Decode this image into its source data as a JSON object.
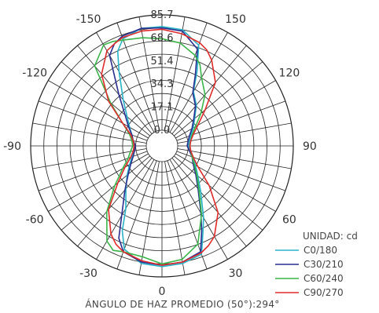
{
  "chart_data": {
    "type": "polar-line",
    "title": "",
    "unit_label": "UNIDAD: cd",
    "caption": "ÁNGULO DE HAZ PROMEDIO (50°):294°",
    "radial_ticks": [
      "0.0",
      "17.1",
      "34.3",
      "51.4",
      "68.6",
      "85.7"
    ],
    "r_max": 85.7,
    "angle_ticks": [
      {
        "angle": 0,
        "label": "0"
      },
      {
        "angle": 30,
        "label": "30"
      },
      {
        "angle": 60,
        "label": "60"
      },
      {
        "angle": 90,
        "label": "90"
      },
      {
        "angle": 120,
        "label": "120"
      },
      {
        "angle": 150,
        "label": "150"
      },
      {
        "angle": -150,
        "label": "-150"
      },
      {
        "angle": -120,
        "label": "-120"
      },
      {
        "angle": -90,
        "label": "-90"
      },
      {
        "angle": -60,
        "label": "-60"
      },
      {
        "angle": -30,
        "label": "-30"
      }
    ],
    "series": [
      {
        "name": "C0/180",
        "color": "#29b3c9",
        "points": [
          [
            0,
            78
          ],
          [
            10,
            77
          ],
          [
            20,
            74
          ],
          [
            25,
            60
          ],
          [
            30,
            50
          ],
          [
            40,
            33
          ],
          [
            50,
            23
          ],
          [
            60,
            17
          ],
          [
            70,
            13
          ],
          [
            80,
            10
          ],
          [
            90,
            8
          ],
          [
            100,
            9
          ],
          [
            110,
            11
          ],
          [
            120,
            15
          ],
          [
            130,
            20
          ],
          [
            140,
            28
          ],
          [
            150,
            35
          ],
          [
            155,
            50
          ],
          [
            160,
            68
          ],
          [
            170,
            76
          ],
          [
            180,
            77
          ],
          [
            190,
            77
          ],
          [
            200,
            73
          ],
          [
            205,
            66
          ],
          [
            210,
            52
          ],
          [
            220,
            33
          ],
          [
            230,
            22
          ],
          [
            240,
            16
          ],
          [
            250,
            12
          ],
          [
            260,
            10
          ],
          [
            270,
            8
          ],
          [
            280,
            10
          ],
          [
            290,
            12
          ],
          [
            300,
            16
          ],
          [
            310,
            22
          ],
          [
            320,
            30
          ],
          [
            330,
            42
          ],
          [
            335,
            58
          ],
          [
            340,
            70
          ],
          [
            350,
            77
          ],
          [
            360,
            78
          ]
        ]
      },
      {
        "name": "C30/210",
        "color": "#2a2f8f",
        "points": [
          [
            0,
            77
          ],
          [
            10,
            76
          ],
          [
            20,
            72
          ],
          [
            25,
            58
          ],
          [
            30,
            46
          ],
          [
            40,
            30
          ],
          [
            50,
            21
          ],
          [
            60,
            15
          ],
          [
            70,
            12
          ],
          [
            80,
            9
          ],
          [
            90,
            7
          ],
          [
            100,
            8
          ],
          [
            110,
            10
          ],
          [
            120,
            14
          ],
          [
            130,
            19
          ],
          [
            140,
            27
          ],
          [
            150,
            34
          ],
          [
            155,
            47
          ],
          [
            160,
            65
          ],
          [
            170,
            75
          ],
          [
            180,
            76
          ],
          [
            190,
            77
          ],
          [
            200,
            75
          ],
          [
            205,
            72
          ],
          [
            210,
            66
          ],
          [
            220,
            38
          ],
          [
            230,
            24
          ],
          [
            240,
            17
          ],
          [
            250,
            12
          ],
          [
            260,
            10
          ],
          [
            270,
            8
          ],
          [
            280,
            9
          ],
          [
            290,
            11
          ],
          [
            300,
            15
          ],
          [
            310,
            21
          ],
          [
            320,
            31
          ],
          [
            330,
            48
          ],
          [
            335,
            64
          ],
          [
            340,
            72
          ],
          [
            350,
            76
          ],
          [
            360,
            77
          ]
        ]
      },
      {
        "name": "C60/240",
        "color": "#3bb54a",
        "points": [
          [
            0,
            76
          ],
          [
            10,
            74
          ],
          [
            20,
            66
          ],
          [
            25,
            55
          ],
          [
            30,
            47
          ],
          [
            40,
            31
          ],
          [
            50,
            22
          ],
          [
            60,
            16
          ],
          [
            70,
            12
          ],
          [
            80,
            10
          ],
          [
            90,
            9
          ],
          [
            100,
            10
          ],
          [
            110,
            12
          ],
          [
            120,
            17
          ],
          [
            130,
            26
          ],
          [
            140,
            38
          ],
          [
            150,
            47
          ],
          [
            155,
            55
          ],
          [
            160,
            60
          ],
          [
            170,
            66
          ],
          [
            180,
            68
          ],
          [
            190,
            70
          ],
          [
            200,
            72
          ],
          [
            205,
            74
          ],
          [
            210,
            75
          ],
          [
            220,
            66
          ],
          [
            230,
            38
          ],
          [
            240,
            22
          ],
          [
            250,
            14
          ],
          [
            260,
            11
          ],
          [
            270,
            10
          ],
          [
            280,
            12
          ],
          [
            290,
            15
          ],
          [
            300,
            22
          ],
          [
            310,
            34
          ],
          [
            320,
            52
          ],
          [
            330,
            70
          ],
          [
            335,
            74
          ],
          [
            340,
            72
          ],
          [
            350,
            72
          ],
          [
            360,
            76
          ]
        ]
      },
      {
        "name": "C90/270",
        "color": "#e02b2b",
        "points": [
          [
            0,
            77
          ],
          [
            10,
            76
          ],
          [
            20,
            73
          ],
          [
            25,
            70
          ],
          [
            30,
            66
          ],
          [
            40,
            53
          ],
          [
            50,
            34
          ],
          [
            60,
            19
          ],
          [
            70,
            13
          ],
          [
            80,
            10
          ],
          [
            90,
            9
          ],
          [
            100,
            10
          ],
          [
            110,
            13
          ],
          [
            120,
            19
          ],
          [
            130,
            30
          ],
          [
            140,
            50
          ],
          [
            150,
            62
          ],
          [
            155,
            67
          ],
          [
            160,
            70
          ],
          [
            170,
            73
          ],
          [
            180,
            75
          ],
          [
            190,
            75
          ],
          [
            200,
            74
          ],
          [
            205,
            72
          ],
          [
            210,
            70
          ],
          [
            220,
            58
          ],
          [
            230,
            40
          ],
          [
            240,
            22
          ],
          [
            250,
            13
          ],
          [
            260,
            10
          ],
          [
            270,
            9
          ],
          [
            280,
            10
          ],
          [
            290,
            13
          ],
          [
            300,
            20
          ],
          [
            310,
            31
          ],
          [
            320,
            50
          ],
          [
            330,
            64
          ],
          [
            335,
            69
          ],
          [
            340,
            72
          ],
          [
            350,
            75
          ],
          [
            360,
            77
          ]
        ]
      }
    ]
  }
}
